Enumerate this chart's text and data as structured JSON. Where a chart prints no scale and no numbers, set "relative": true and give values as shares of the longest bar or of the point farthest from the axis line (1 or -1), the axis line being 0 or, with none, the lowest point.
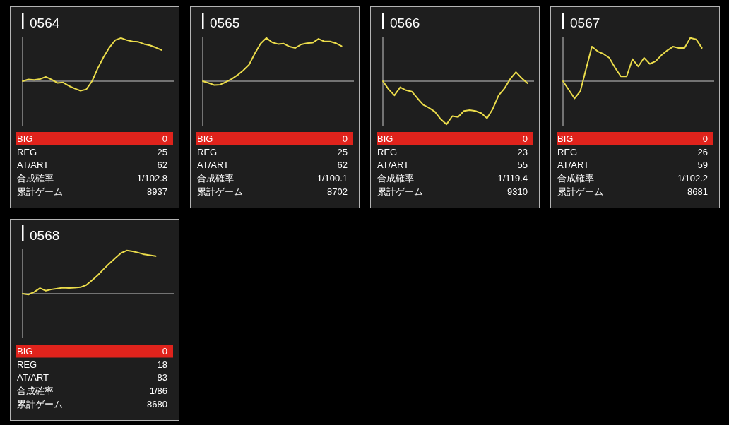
{
  "chart_data": [
    {
      "type": "line",
      "title": "0564",
      "relative": true,
      "categories": [
        null,
        null,
        null,
        null,
        null,
        null,
        null,
        null,
        null,
        null,
        null,
        null,
        null,
        null,
        null,
        null,
        null,
        null,
        null,
        null,
        null,
        null,
        null,
        null,
        null,
        null,
        null
      ],
      "series": [
        {
          "color": "#ebdc4b",
          "values": [
            0,
            0.04,
            0.03,
            0.05,
            0.1,
            0.04,
            -0.04,
            -0.03,
            -0.11,
            -0.17,
            -0.22,
            -0.19,
            0,
            0.3,
            0.56,
            0.78,
            0.95,
            1.0,
            0.95,
            0.92,
            0.91,
            0.86,
            0.83,
            0.78,
            0.72,
            null,
            null
          ]
        }
      ],
      "annotations": [
        "BIG",
        "0",
        "REG",
        "25",
        "AT/ART",
        "62",
        "合成確率",
        "1/102.8",
        "累計ゲーム",
        "8937"
      ]
    },
    {
      "type": "line",
      "title": "0565",
      "relative": true,
      "categories": [
        null,
        null,
        null,
        null,
        null,
        null,
        null,
        null,
        null,
        null,
        null,
        null,
        null,
        null,
        null,
        null,
        null,
        null,
        null,
        null,
        null,
        null,
        null,
        null,
        null,
        null,
        null
      ],
      "series": [
        {
          "color": "#ebdc4b",
          "values": [
            0,
            -0.04,
            -0.09,
            -0.08,
            -0.02,
            0.05,
            0.14,
            0.25,
            0.38,
            0.64,
            0.87,
            1.0,
            0.9,
            0.86,
            0.87,
            0.8,
            0.77,
            0.85,
            0.88,
            0.89,
            0.98,
            0.92,
            0.92,
            0.88,
            0.81,
            null,
            null
          ]
        }
      ],
      "annotations": [
        "BIG",
        "0",
        "REG",
        "25",
        "AT/ART",
        "62",
        "合成確率",
        "1/100.1",
        "累計ゲーム",
        "8702"
      ]
    },
    {
      "type": "line",
      "title": "0566",
      "relative": true,
      "categories": [
        null,
        null,
        null,
        null,
        null,
        null,
        null,
        null,
        null,
        null,
        null,
        null,
        null,
        null,
        null,
        null,
        null,
        null,
        null,
        null,
        null,
        null,
        null,
        null,
        null,
        null,
        null
      ],
      "series": [
        {
          "color": "#ebdc4b",
          "values": [
            0,
            -0.19,
            -0.33,
            -0.14,
            -0.21,
            -0.24,
            -0.4,
            -0.55,
            -0.62,
            -0.71,
            -0.88,
            -1.0,
            -0.81,
            -0.83,
            -0.69,
            -0.67,
            -0.69,
            -0.74,
            -0.86,
            -0.64,
            -0.33,
            -0.17,
            0.05,
            0.21,
            0.07,
            -0.05,
            null
          ]
        }
      ],
      "annotations": [
        "BIG",
        "0",
        "REG",
        "23",
        "AT/ART",
        "55",
        "合成確率",
        "1/119.4",
        "累計ゲーム",
        "9310"
      ]
    },
    {
      "type": "line",
      "title": "0567",
      "relative": true,
      "categories": [
        null,
        null,
        null,
        null,
        null,
        null,
        null,
        null,
        null,
        null,
        null,
        null,
        null,
        null,
        null,
        null,
        null,
        null,
        null,
        null,
        null,
        null,
        null,
        null,
        null,
        null,
        null
      ],
      "series": [
        {
          "color": "#ebdc4b",
          "values": [
            0,
            -0.2,
            -0.4,
            -0.23,
            0.29,
            0.8,
            0.69,
            0.63,
            0.54,
            0.31,
            0.11,
            0.11,
            0.51,
            0.34,
            0.54,
            0.4,
            0.46,
            0.6,
            0.71,
            0.8,
            0.77,
            0.77,
            1.0,
            0.97,
            0.77,
            null,
            null
          ]
        }
      ],
      "annotations": [
        "BIG",
        "0",
        "REG",
        "26",
        "AT/ART",
        "59",
        "合成確率",
        "1/102.2",
        "累計ゲーム",
        "8681"
      ]
    },
    {
      "type": "line",
      "title": "0568",
      "relative": true,
      "categories": [
        null,
        null,
        null,
        null,
        null,
        null,
        null,
        null,
        null,
        null,
        null,
        null,
        null,
        null,
        null,
        null,
        null,
        null,
        null,
        null,
        null,
        null,
        null,
        null,
        null,
        null,
        null
      ],
      "series": [
        {
          "color": "#ebdc4b",
          "values": [
            0,
            -0.02,
            0.04,
            0.13,
            0.07,
            0.1,
            0.12,
            0.14,
            0.13,
            0.14,
            0.15,
            0.2,
            0.31,
            0.43,
            0.57,
            0.7,
            0.82,
            0.94,
            1.0,
            0.98,
            0.95,
            0.91,
            0.89,
            0.87,
            null,
            null,
            null
          ]
        }
      ],
      "annotations": [
        "BIG",
        "0",
        "REG",
        "18",
        "AT/ART",
        "83",
        "合成確率",
        "1/86",
        "累計ゲーム",
        "8680"
      ]
    }
  ]
}
